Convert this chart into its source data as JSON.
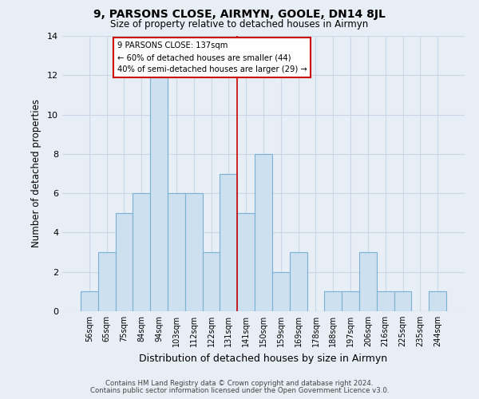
{
  "title": "9, PARSONS CLOSE, AIRMYN, GOOLE, DN14 8JL",
  "subtitle": "Size of property relative to detached houses in Airmyn",
  "xlabel": "Distribution of detached houses by size in Airmyn",
  "ylabel": "Number of detached properties",
  "footer_line1": "Contains HM Land Registry data © Crown copyright and database right 2024.",
  "footer_line2": "Contains public sector information licensed under the Open Government Licence v3.0.",
  "bar_labels": [
    "56sqm",
    "65sqm",
    "75sqm",
    "84sqm",
    "94sqm",
    "103sqm",
    "112sqm",
    "122sqm",
    "131sqm",
    "141sqm",
    "150sqm",
    "159sqm",
    "169sqm",
    "178sqm",
    "188sqm",
    "197sqm",
    "206sqm",
    "216sqm",
    "225sqm",
    "235sqm",
    "244sqm"
  ],
  "bar_values": [
    1,
    3,
    5,
    6,
    12,
    6,
    6,
    3,
    7,
    5,
    8,
    2,
    3,
    0,
    1,
    1,
    3,
    1,
    1,
    0,
    1
  ],
  "bar_color": "#cce0f0",
  "bar_edge_color": "#7ab0d4",
  "reference_line_x": 8.5,
  "annotation_label": "9 PARSONS CLOSE: 137sqm",
  "annotation_line1": "← 60% of detached houses are smaller (44)",
  "annotation_line2": "40% of semi-detached houses are larger (29) →",
  "annotation_box_color": "#ffffff",
  "annotation_box_edge": "#cc0000",
  "ylim": [
    0,
    14
  ],
  "yticks": [
    0,
    2,
    4,
    6,
    8,
    10,
    12,
    14
  ],
  "grid_color": "#c8d8e8",
  "background_color": "#e8eef5"
}
